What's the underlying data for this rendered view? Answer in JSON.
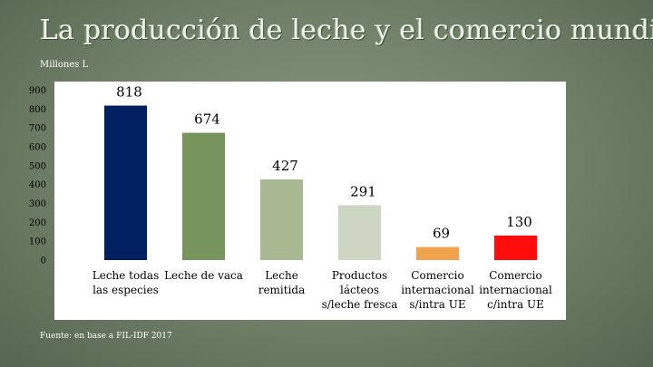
{
  "slide": {
    "title": "La producción de leche y el comercio mundial",
    "unit_label": "Millones L",
    "source": "Fuente: en base a FIL-IDF 2017"
  },
  "chart_data": {
    "type": "bar",
    "title": "La producción de leche y el comercio mundial",
    "xlabel": "",
    "ylabel": "Millones L",
    "ylim": [
      0,
      900
    ],
    "yticks": [
      0,
      100,
      200,
      300,
      400,
      500,
      600,
      700,
      800,
      900
    ],
    "grid": false,
    "legend": "none",
    "categories": [
      [
        "Leche todas",
        "las especies"
      ],
      [
        "Leche de vaca"
      ],
      [
        "Leche",
        "remitida"
      ],
      [
        "Productos",
        "lácteos",
        "s/leche fresca"
      ],
      [
        "Comercio",
        "internacional",
        "s/intra UE"
      ],
      [
        "Comercio",
        "internacional",
        "c/intra UE"
      ]
    ],
    "values": [
      818,
      674,
      427,
      291,
      69,
      130
    ],
    "data_labels": [
      "818",
      "674",
      "427",
      "291",
      "69",
      "130"
    ],
    "colors": [
      "#002060",
      "#77945c",
      "#a8b890",
      "#cdd6c2",
      "#f0a24e",
      "#ff0d0d"
    ]
  }
}
